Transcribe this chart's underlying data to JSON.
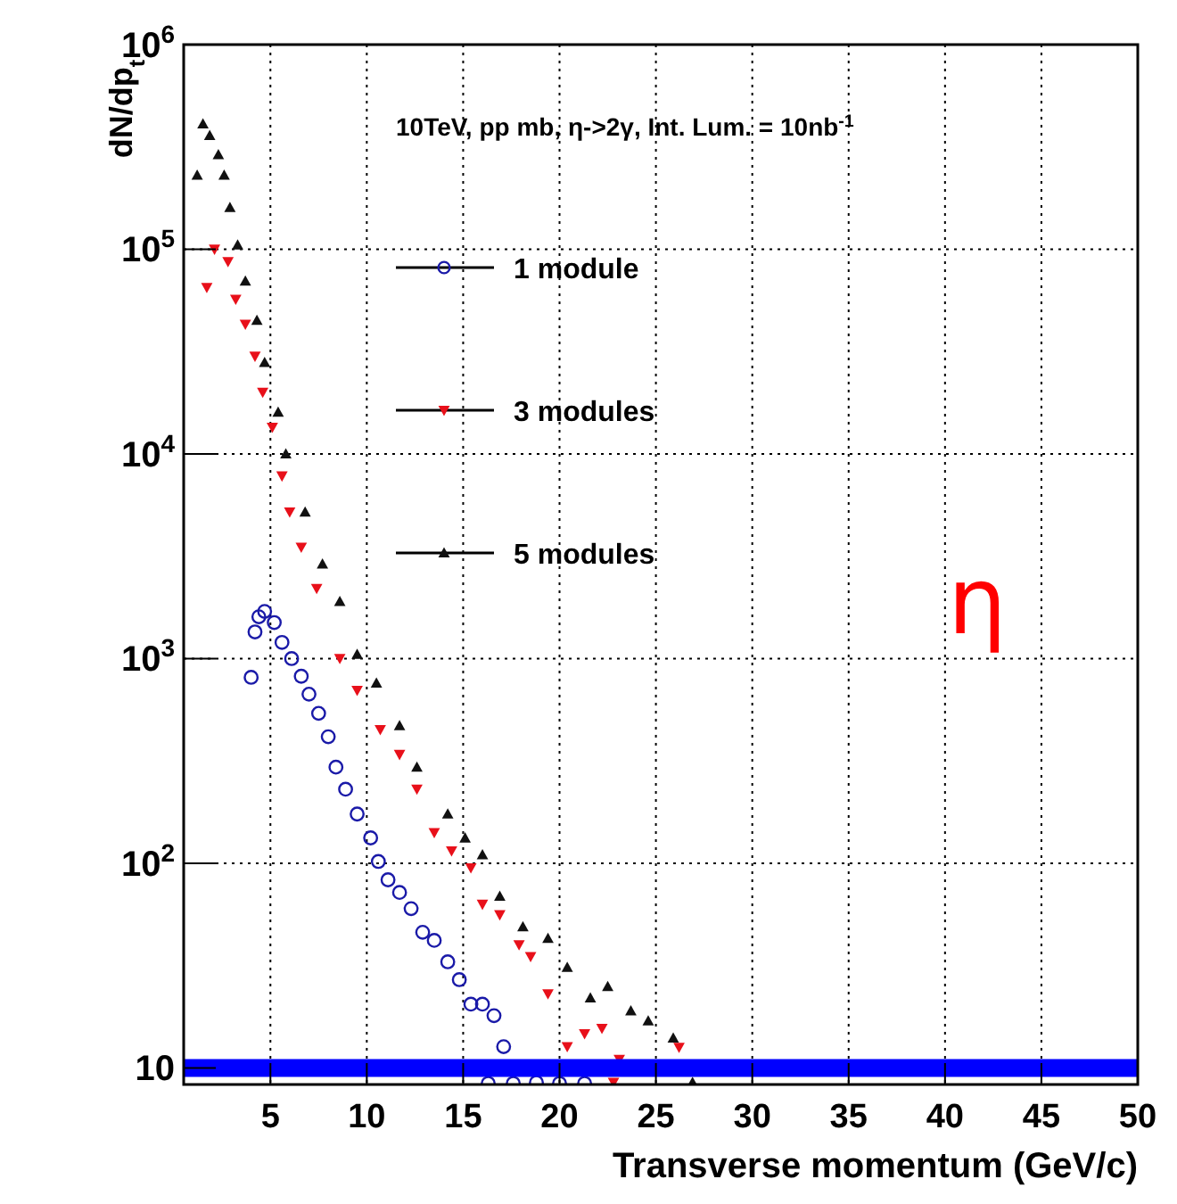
{
  "chart_data": {
    "type": "scatter",
    "title": "10TeV, pp mb, η->2γ, Int. Lum. = 10nb$^{-1}$",
    "xlabel": "Transverse momentum (GeV/c)",
    "ylabel": "dN/dp$_{t}$",
    "log": "y",
    "grid": true,
    "legend": "top",
    "xlim": [
      0.5,
      50
    ],
    "xticks": [
      5,
      10,
      15,
      20,
      25,
      30,
      35,
      40,
      45,
      50
    ],
    "ylim": [
      8.3,
      1000000
    ],
    "yticks": [
      {
        "value": 10,
        "label": "10"
      },
      {
        "value": 100,
        "label": "10$^{2}$"
      },
      {
        "value": 1000,
        "label": "10$^{3}$"
      },
      {
        "value": 10000,
        "label": "10$^{4}$"
      },
      {
        "value": 100000,
        "label": "10$^{5}$"
      },
      {
        "value": 1000000,
        "label": "10$^{6}$"
      }
    ],
    "series": [
      {
        "name": "1 module",
        "color": "#1a1aa8",
        "marker": "circle",
        "x": [
          4.0,
          4.2,
          4.4,
          4.7,
          5.2,
          5.6,
          6.1,
          6.6,
          7.0,
          7.5,
          8.0,
          8.4,
          8.9,
          9.5,
          10.2,
          10.6,
          11.1,
          11.7,
          12.3,
          12.9,
          13.5,
          14.2,
          14.8,
          15.4,
          16.0,
          16.3,
          16.6,
          17.1,
          17.6,
          18.8,
          20.0,
          21.3
        ],
        "values": [
          810,
          1350,
          1600,
          1700,
          1500,
          1200,
          1000,
          820,
          670,
          540,
          415,
          295,
          230,
          174,
          133,
          102,
          83,
          72,
          60,
          46,
          42,
          33,
          27,
          20.5,
          20.5,
          8.4,
          18,
          12.7,
          8.4,
          8.5,
          8.4,
          8.4
        ]
      },
      {
        "name": "3 modules",
        "color": "#e8101a",
        "marker": "triangle-down",
        "x": [
          1.7,
          2.1,
          2.8,
          3.2,
          3.7,
          4.2,
          4.6,
          5.1,
          5.6,
          6.0,
          6.6,
          7.4,
          8.6,
          9.5,
          10.7,
          11.7,
          12.6,
          13.5,
          14.4,
          15.4,
          16.0,
          16.9,
          17.9,
          18.5,
          19.4,
          20.4,
          21.3,
          22.2,
          22.8,
          23.1,
          26.2
        ],
        "values": [
          65000,
          100000,
          87000,
          57000,
          43000,
          30000,
          20000,
          13500,
          7800,
          5200,
          3500,
          2200,
          1000,
          700,
          450,
          340,
          230,
          141,
          115,
          95,
          63,
          56,
          40,
          35,
          23,
          12.7,
          14.7,
          15.6,
          8.5,
          11,
          12.6
        ]
      },
      {
        "name": "5 modules",
        "color": "#111111",
        "marker": "triangle",
        "x": [
          1.2,
          1.5,
          1.85,
          2.3,
          2.6,
          2.9,
          3.3,
          3.7,
          4.3,
          4.7,
          5.4,
          5.8,
          6.8,
          7.7,
          8.6,
          9.5,
          10.5,
          11.7,
          12.6,
          14.2,
          15.1,
          16.0,
          16.9,
          18.1,
          19.4,
          20.4,
          21.6,
          22.5,
          23.7,
          24.6,
          25.9,
          26.9
        ],
        "values": [
          230000,
          410000,
          360000,
          290000,
          230000,
          160000,
          105000,
          70000,
          45000,
          28000,
          16000,
          10000,
          5200,
          2900,
          1900,
          1050,
          760,
          470,
          295,
          174,
          133,
          110,
          69,
          49,
          43,
          31,
          22,
          25,
          19,
          17,
          14,
          8.5
        ]
      }
    ],
    "ref_lines": [
      {
        "axis": "y",
        "value": 10,
        "color": "#0000ff"
      }
    ],
    "annotations": [
      "η"
    ]
  }
}
